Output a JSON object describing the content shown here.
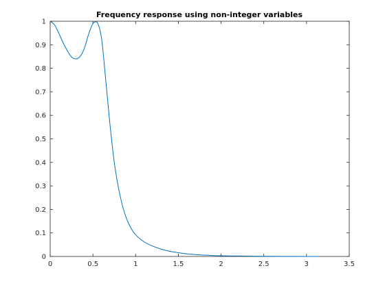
{
  "chart_data": {
    "type": "line",
    "title": "Frequency response using non-integer variables",
    "xlabel": "",
    "ylabel": "",
    "xlim": [
      0,
      3.5
    ],
    "ylim": [
      0,
      1
    ],
    "xticks": [
      0,
      0.5,
      1,
      1.5,
      2,
      2.5,
      3,
      3.5
    ],
    "xtick_labels": [
      "0",
      "0.5",
      "1",
      "1.5",
      "2",
      "2.5",
      "3",
      "3.5"
    ],
    "yticks": [
      0,
      0.1,
      0.2,
      0.3,
      0.4,
      0.5,
      0.6,
      0.7,
      0.8,
      0.9,
      1
    ],
    "ytick_labels": [
      "0",
      "0.1",
      "0.2",
      "0.3",
      "0.4",
      "0.5",
      "0.6",
      "0.7",
      "0.8",
      "0.9",
      "1"
    ],
    "grid": false,
    "box": true,
    "series": [
      {
        "color": "#0072bd",
        "x": [
          0,
          0.05,
          0.1,
          0.15,
          0.2,
          0.25,
          0.3,
          0.35,
          0.4,
          0.45,
          0.5,
          0.55,
          0.6,
          0.65,
          0.7,
          0.75,
          0.8,
          0.85,
          0.9,
          0.95,
          1.0,
          1.1,
          1.2,
          1.3,
          1.4,
          1.5,
          1.6,
          1.7,
          1.8,
          1.9,
          2.0,
          2.2,
          2.4,
          2.6,
          2.8,
          3.0,
          3.14
        ],
        "y": [
          1.0,
          0.985,
          0.95,
          0.91,
          0.875,
          0.848,
          0.84,
          0.85,
          0.885,
          0.945,
          0.99,
          0.995,
          0.93,
          0.75,
          0.56,
          0.4,
          0.29,
          0.21,
          0.155,
          0.118,
          0.092,
          0.062,
          0.044,
          0.031,
          0.022,
          0.016,
          0.011,
          0.008,
          0.006,
          0.004,
          0.003,
          0.002,
          0.001,
          0.0006,
          0.0003,
          0.0001,
          0.0
        ]
      }
    ]
  }
}
